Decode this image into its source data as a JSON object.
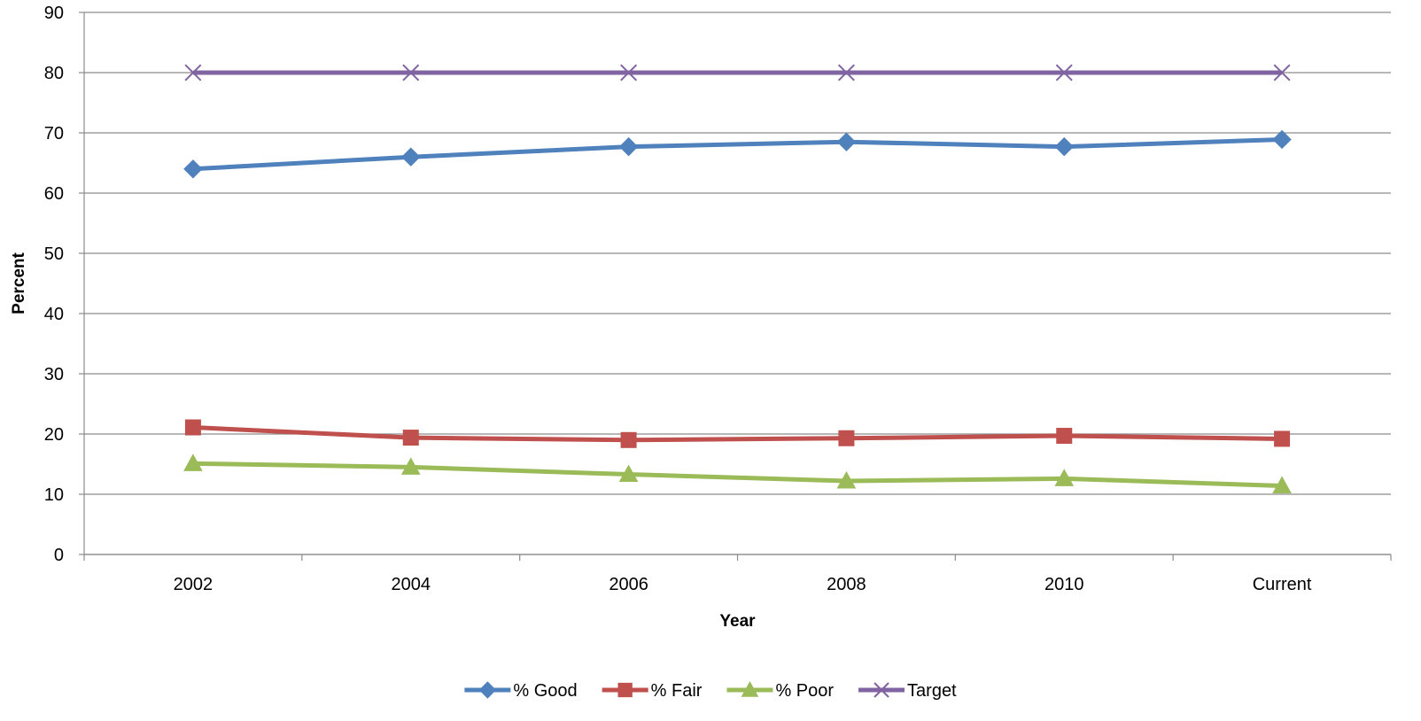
{
  "chart_data": {
    "type": "line",
    "title": "",
    "xlabel": "Year",
    "ylabel": "Percent",
    "categories": [
      "2002",
      "2004",
      "2006",
      "2008",
      "2010",
      "Current"
    ],
    "ylim": [
      0,
      90
    ],
    "yticks": [
      0,
      10,
      20,
      30,
      40,
      50,
      60,
      70,
      80,
      90
    ],
    "grid": "horizontal",
    "legend_position": "bottom",
    "series": [
      {
        "name": "% Good",
        "values": [
          64.0,
          66.0,
          67.7,
          68.5,
          67.7,
          68.9
        ],
        "color": "#4F81BD",
        "marker": "diamond"
      },
      {
        "name": "% Fair",
        "values": [
          21.1,
          19.4,
          19.0,
          19.3,
          19.7,
          19.2
        ],
        "color": "#C0504D",
        "marker": "square"
      },
      {
        "name": "% Poor",
        "values": [
          15.1,
          14.5,
          13.3,
          12.2,
          12.6,
          11.4
        ],
        "color": "#9BBB59",
        "marker": "triangle"
      },
      {
        "name": "Target",
        "values": [
          80,
          80,
          80,
          80,
          80,
          80
        ],
        "color": "#8064A2",
        "marker": "x"
      }
    ]
  }
}
